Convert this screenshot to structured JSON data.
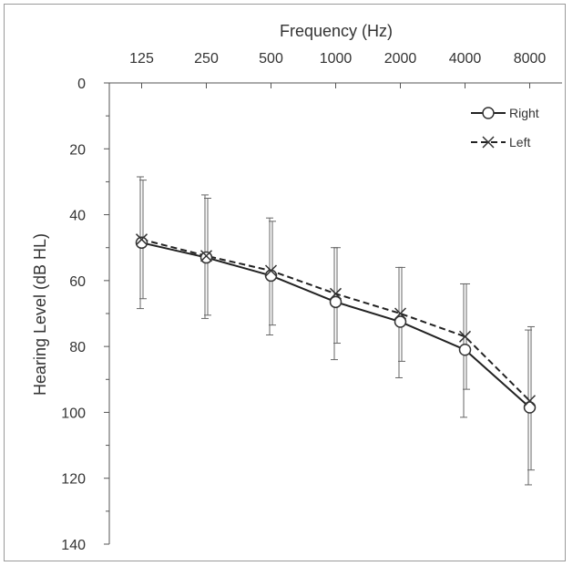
{
  "chart_data": {
    "type": "line",
    "x_title": "Frequency (Hz)",
    "y_title": "Hearing Level (dB HL)",
    "categories": [
      "125",
      "250",
      "500",
      "1000",
      "2000",
      "4000",
      "8000"
    ],
    "y_ticks": [
      "0",
      "20",
      "40",
      "60",
      "80",
      "100",
      "120",
      "140"
    ],
    "ylim": [
      0,
      140
    ],
    "y_inverted": true,
    "x_axis_position": "top",
    "grid": false,
    "legend_position": "top-right",
    "series": [
      {
        "name": "Right",
        "marker": "open-circle",
        "line_style": "solid",
        "values": [
          48.5,
          53,
          58.5,
          66.5,
          72.5,
          81,
          98.5
        ],
        "error_low": [
          28.5,
          34,
          41,
          50,
          56,
          61,
          75
        ],
        "error_high": [
          68.5,
          71.5,
          76.5,
          84,
          89.5,
          101.5,
          122
        ]
      },
      {
        "name": "Left",
        "marker": "x",
        "line_style": "dashed",
        "values": [
          47.5,
          52.5,
          57,
          64,
          70,
          77,
          96.5
        ],
        "error_low": [
          29.5,
          35,
          42,
          50,
          56,
          61,
          74
        ],
        "error_high": [
          65.5,
          70.5,
          73.5,
          79,
          84.5,
          93,
          117.5
        ]
      }
    ]
  }
}
